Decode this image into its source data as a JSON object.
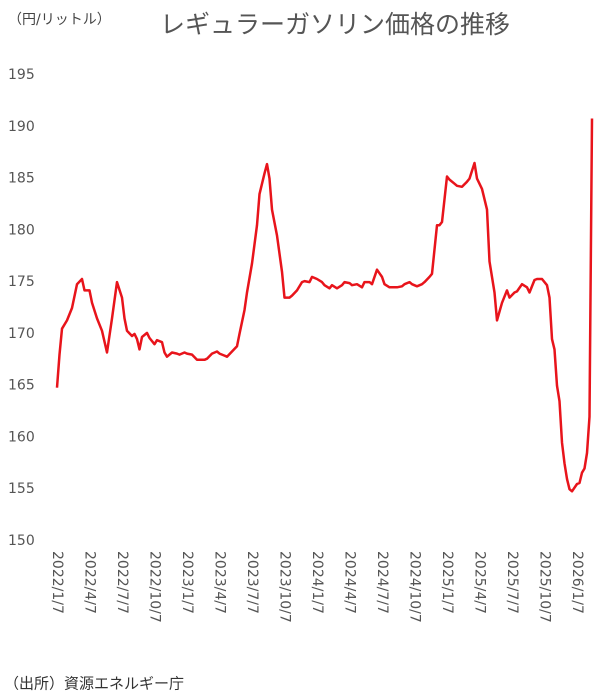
{
  "chart_data": {
    "type": "line",
    "title": "レギュラーガソリン価格の推移",
    "y_label": "（円/リットル）",
    "source": "（出所）資源エネルギー庁",
    "x": [
      0,
      1,
      2,
      4,
      6,
      8,
      10,
      11,
      13,
      14,
      16,
      18,
      20,
      22,
      24,
      26,
      27,
      28,
      30,
      31,
      32,
      33,
      34,
      36,
      37,
      39,
      40,
      42,
      43,
      44,
      46,
      48,
      49,
      51,
      52,
      54,
      56,
      57,
      59,
      60,
      62,
      64,
      65,
      67,
      68,
      70,
      72,
      73,
      75,
      76,
      78,
      80,
      81,
      83,
      84,
      85,
      86,
      88,
      90,
      91,
      93,
      94,
      96,
      98,
      99,
      101,
      102,
      104,
      106,
      107,
      109,
      110,
      112,
      114,
      115,
      117,
      118,
      120,
      122,
      123,
      125,
      126,
      128,
      130,
      131,
      133,
      134,
      136,
      138,
      139,
      141,
      142,
      144,
      146,
      147,
      149,
      150,
      152,
      153,
      154,
      156,
      157,
      159,
      160,
      162,
      164,
      165,
      167,
      168,
      170,
      172,
      173,
      175,
      176,
      178,
      180,
      181,
      183,
      184,
      186,
      188,
      189,
      191,
      192,
      194,
      196,
      197,
      198,
      199,
      200,
      201,
      202,
      203,
      204,
      205,
      206,
      208,
      209,
      210,
      211,
      212,
      213,
      214
    ],
    "series": [
      {
        "name": "レギュラーガソリン",
        "color": "#e8141b",
        "values": [
          164.8,
          168,
          170.5,
          171.3,
          172.5,
          174.8,
          175.3,
          174.2,
          174.2,
          173,
          171.5,
          170.3,
          168.2,
          171.5,
          175,
          173.5,
          171.5,
          170.3,
          169.8,
          170,
          169.5,
          168.5,
          169.7,
          170.1,
          169.6,
          169,
          169.4,
          169.2,
          168.2,
          167.8,
          168.2,
          168.1,
          168,
          168.2,
          168.1,
          168,
          167.5,
          167.5,
          167.5,
          167.6,
          168.1,
          168.3,
          168.1,
          167.9,
          167.8,
          168.3,
          168.8,
          170,
          172.3,
          174,
          176.8,
          180.5,
          183.5,
          185.5,
          186.4,
          185,
          182,
          179.5,
          176,
          173.5,
          173.5,
          173.7,
          174.2,
          175,
          175.1,
          175,
          175.5,
          175.3,
          175,
          174.7,
          174.4,
          174.7,
          174.4,
          174.7,
          175,
          174.9,
          174.7,
          174.8,
          174.5,
          175,
          175,
          174.8,
          176.2,
          175.5,
          174.8,
          174.5,
          174.5,
          174.5,
          174.6,
          174.8,
          175,
          174.8,
          174.6,
          174.8,
          175,
          175.5,
          175.8,
          180.5,
          180.5,
          180.8,
          185.2,
          184.9,
          184.5,
          184.3,
          184.2,
          184.7,
          185,
          186.5,
          185,
          184,
          182,
          177,
          174,
          171.3,
          173,
          174.2,
          173.5,
          174,
          174.1,
          174.8,
          174.5,
          174,
          175.2,
          175.3,
          175.3,
          174.7,
          173.5,
          169.5,
          168.5,
          165,
          163.5,
          159.5,
          157.5,
          156,
          155,
          154.8,
          155.5,
          155.6,
          156.6,
          157,
          158.5,
          162,
          190.8
        ]
      }
    ],
    "xlim": [
      -2,
      215.5
    ],
    "xticks": [
      {
        "value": 0,
        "label": "2022/1/7"
      },
      {
        "value": 13,
        "label": "2022/4/7"
      },
      {
        "value": 26,
        "label": "2022/7/7"
      },
      {
        "value": 39,
        "label": "2022/10/7"
      },
      {
        "value": 52,
        "label": "2023/1/7"
      },
      {
        "value": 65,
        "label": "2023/4/7"
      },
      {
        "value": 78,
        "label": "2023/7/7"
      },
      {
        "value": 91,
        "label": "2023/10/7"
      },
      {
        "value": 104,
        "label": "2024/1/7"
      },
      {
        "value": 117,
        "label": "2024/4/7"
      },
      {
        "value": 130,
        "label": "2024/7/7"
      },
      {
        "value": 143,
        "label": "2024/10/7"
      },
      {
        "value": 156,
        "label": "2025/1/7"
      },
      {
        "value": 169,
        "label": "2025/4/7"
      },
      {
        "value": 182,
        "label": "2025/7/7"
      },
      {
        "value": 195,
        "label": "2025/10/7"
      },
      {
        "value": 208,
        "label": "2026/1/7"
      }
    ],
    "ylim": [
      150,
      195
    ],
    "yticks": [
      150,
      155,
      160,
      165,
      170,
      175,
      180,
      185,
      190,
      195
    ],
    "grid": false
  }
}
